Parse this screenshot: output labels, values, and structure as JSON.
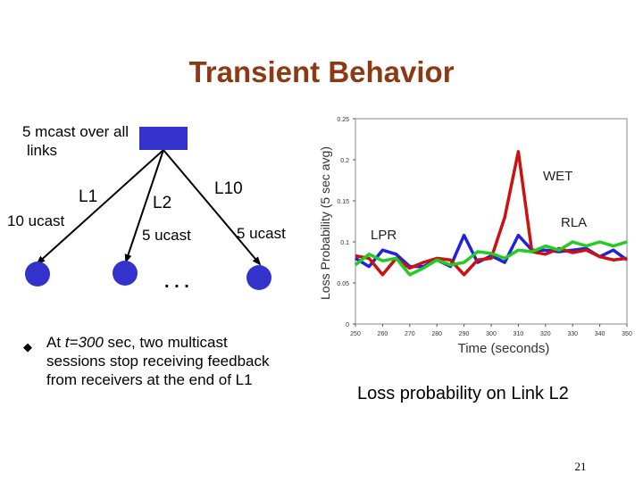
{
  "slide": {
    "title": "Transient Behavior",
    "page_number": "21"
  },
  "diagram": {
    "source_label": "5 mcast over all links",
    "source_label_line1": "5 mcast over all",
    "source_label_line2": "links",
    "links": [
      "L1",
      "L2",
      "L10"
    ],
    "receiver_labels": [
      "10 ucast",
      "5 ucast",
      "5 ucast"
    ],
    "ellipsis": ". . .",
    "colors": {
      "node": "#3333cc",
      "lines": "#000000"
    }
  },
  "bullet": {
    "prefix": "At ",
    "emph": "t=300",
    "rest": " sec, two multicast sessions stop receiving feedback from receivers at the end of L1",
    "line1_rest": " sec, two multicast",
    "line2": "sessions stop receiving feedback",
    "line3": "from receivers at the end of L1"
  },
  "caption": "Loss probability on Link L2",
  "chart_data": {
    "type": "line",
    "xlabel": "Time (seconds)",
    "ylabel": "Loss Probability (5 sec avg)",
    "x_ticks": [
      "250",
      "260",
      "270",
      "280",
      "290",
      "300",
      "310",
      "320",
      "330",
      "340",
      "350"
    ],
    "y_ticks": [
      "0",
      "0.05",
      "0.1",
      "0.15",
      "0.2",
      "0.25"
    ],
    "xlim": [
      250,
      350
    ],
    "ylim": [
      0,
      0.25
    ],
    "series": [
      {
        "name": "LPR",
        "color": "#2222dd",
        "x": [
          250,
          255,
          260,
          265,
          270,
          275,
          280,
          285,
          290,
          295,
          300,
          305,
          310,
          315,
          320,
          325,
          330,
          335,
          340,
          345,
          350
        ],
        "y": [
          0.08,
          0.07,
          0.09,
          0.085,
          0.07,
          0.07,
          0.078,
          0.07,
          0.108,
          0.075,
          0.083,
          0.075,
          0.108,
          0.09,
          0.09,
          0.088,
          0.09,
          0.092,
          0.082,
          0.09,
          0.078
        ]
      },
      {
        "name": "WET",
        "color": "#cc1111",
        "x": [
          250,
          255,
          260,
          265,
          270,
          275,
          280,
          285,
          290,
          295,
          300,
          305,
          310,
          315,
          320,
          325,
          330,
          335,
          340,
          345,
          350
        ],
        "y": [
          0.083,
          0.08,
          0.06,
          0.08,
          0.068,
          0.075,
          0.08,
          0.078,
          0.06,
          0.078,
          0.08,
          0.13,
          0.21,
          0.088,
          0.085,
          0.092,
          0.087,
          0.09,
          0.082,
          0.078,
          0.08
        ]
      },
      {
        "name": "RLA",
        "color": "#22cc22",
        "x": [
          250,
          255,
          260,
          265,
          270,
          275,
          280,
          285,
          290,
          295,
          300,
          305,
          310,
          315,
          320,
          325,
          330,
          335,
          340,
          345,
          350
        ],
        "y": [
          0.072,
          0.085,
          0.077,
          0.08,
          0.06,
          0.068,
          0.078,
          0.072,
          0.075,
          0.088,
          0.086,
          0.08,
          0.09,
          0.088,
          0.095,
          0.09,
          0.1,
          0.095,
          0.1,
          0.095,
          0.1
        ]
      }
    ]
  }
}
